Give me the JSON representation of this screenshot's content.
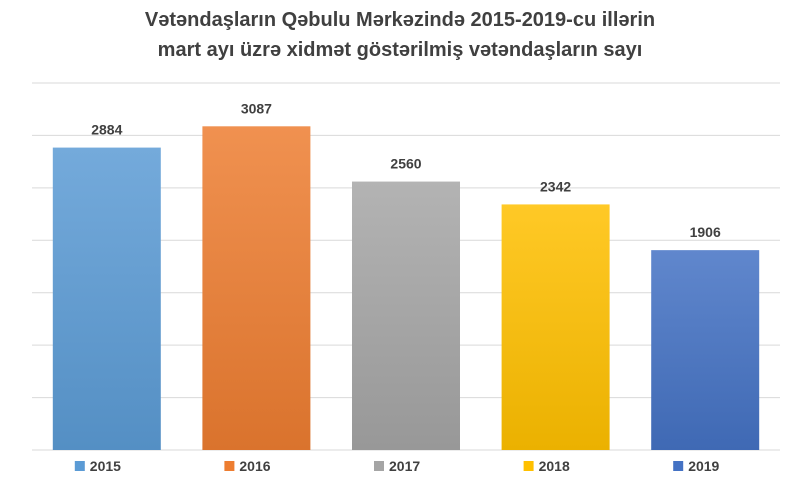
{
  "chart_data": {
    "type": "bar",
    "title_lines": [
      "Vətəndaşların Qəbulu Mərkəzində 2015-2019-cu illərin",
      "mart ayı üzrə xidmət göstərilmiş vətəndaşların sayı"
    ],
    "categories": [
      "2015",
      "2016",
      "2017",
      "2018",
      "2019"
    ],
    "values": [
      2884,
      3087,
      2560,
      2342,
      1906
    ],
    "colors": [
      "#5B9BD5",
      "#ED7D31",
      "#A5A5A5",
      "#FFC000",
      "#4472C4"
    ],
    "ylim": [
      0,
      3500
    ],
    "grid": true,
    "legend": "bottom"
  }
}
